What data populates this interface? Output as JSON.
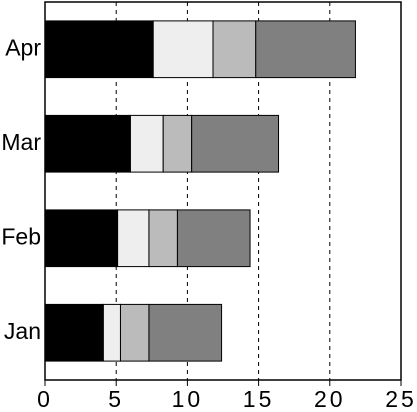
{
  "chart_data": {
    "type": "stacked-bar-horizontal",
    "categories": [
      "Jan",
      "Feb",
      "Mar",
      "Apr"
    ],
    "series": [
      {
        "color": "#000000",
        "values": [
          4.1,
          5.1,
          6.0,
          7.6
        ]
      },
      {
        "color": "#eeeeee",
        "values": [
          1.2,
          2.2,
          2.3,
          4.2
        ]
      },
      {
        "color": "#bbbbbb",
        "values": [
          2.0,
          2.0,
          2.0,
          3.0
        ]
      },
      {
        "color": "#808080",
        "values": [
          5.1,
          5.1,
          6.1,
          7.0
        ]
      }
    ],
    "xlim": [
      0,
      25
    ],
    "xticks": [
      0,
      5,
      10,
      15,
      20,
      25
    ],
    "grid": true
  }
}
